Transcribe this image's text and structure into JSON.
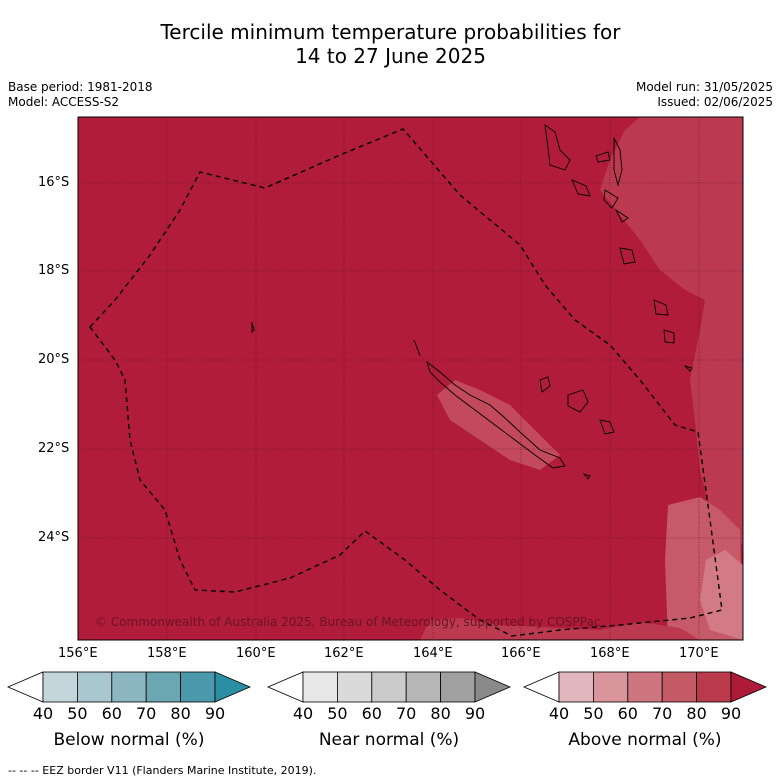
{
  "title_line1": "Tercile minimum temperature probabilities for",
  "title_line2": "14 to 27 June 2025",
  "base_period": "Base period: 1981-2018",
  "model": "Model: ACCESS-S2",
  "model_run": "Model run: 31/05/2025",
  "issued": "Issued: 02/06/2025",
  "copyright": "© Commonwealth of Australia 2025, Bureau of Meteorology, supported by COSPPac",
  "lat_labels": [
    "16°S",
    "18°S",
    "20°S",
    "22°S",
    "24°S"
  ],
  "lon_labels": [
    "156°E",
    "158°E",
    "160°E",
    "162°E",
    "164°E",
    "166°E",
    "168°E",
    "170°E"
  ],
  "legends": {
    "below": {
      "label": "Below normal (%)",
      "ticks": [
        "40",
        "50",
        "60",
        "70",
        "80",
        "90"
      ],
      "colors": [
        "#c4d6dc",
        "#a9c7ce",
        "#8cb6c0",
        "#6ba6b3",
        "#4a9aab",
        "#2b8fa4"
      ]
    },
    "near": {
      "label": "Near normal (%)",
      "ticks": [
        "40",
        "50",
        "60",
        "70",
        "80",
        "90"
      ],
      "colors": [
        "#e8e8e8",
        "#dadada",
        "#cbcbcb",
        "#b7b7b7",
        "#a0a0a0",
        "#8a8a8a"
      ]
    },
    "above": {
      "label": "Above normal (%)",
      "ticks": [
        "40",
        "50",
        "60",
        "70",
        "80",
        "90"
      ],
      "colors": [
        "#e2b6bd",
        "#d9949c",
        "#ce767f",
        "#c45a66",
        "#ba3a4c",
        "#ae1b39"
      ]
    }
  },
  "footer": "--  --  -- EEZ border V11 (Flanders Marine Institute, 2019).",
  "colors": {
    "above_90": "#b01c3a",
    "above_80": "#bc3a50",
    "above_70": "#c65a68"
  }
}
